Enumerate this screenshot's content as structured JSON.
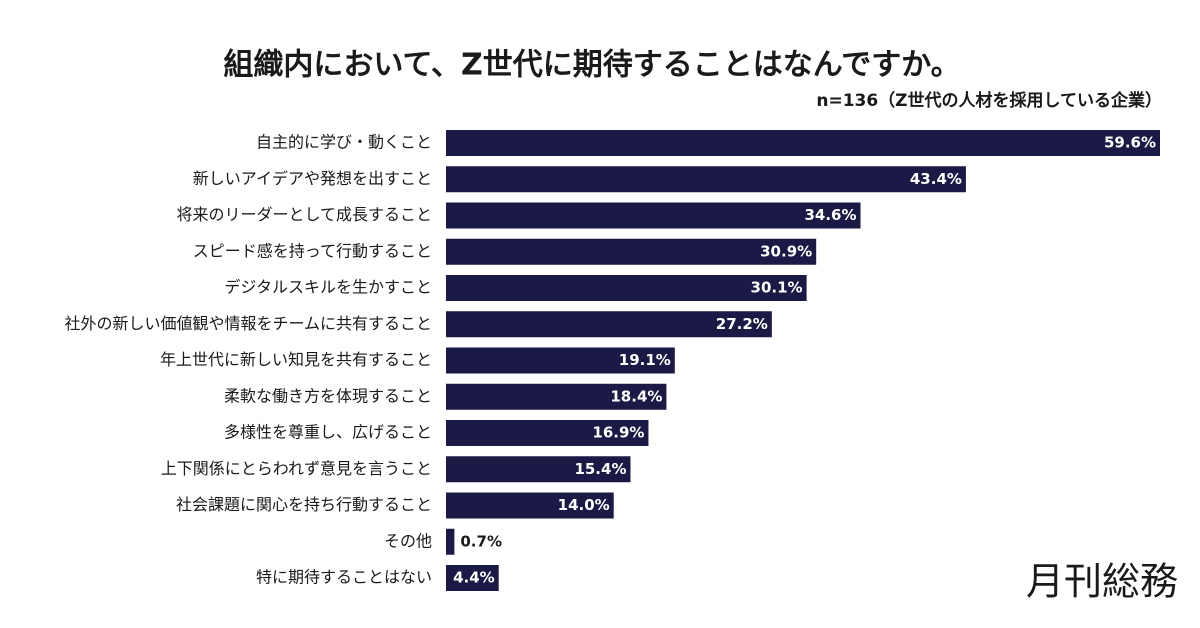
{
  "chart_data": {
    "type": "bar",
    "orientation": "horizontal",
    "title": "組織内において、Z世代に期待することはなんですか。",
    "subtitle": "n=136（Z世代の人材を採用している企業）",
    "categories": [
      "自主的に学び・動くこと",
      "新しいアイデアや発想を出すこと",
      "将来のリーダーとして成長すること",
      "スピード感を持って行動すること",
      "デジタルスキルを生かすこと",
      "社外の新しい価値観や情報をチームに共有すること",
      "年上世代に新しい知見を共有すること",
      "柔軟な働き方を体現すること",
      "多様性を尊重し、広げること",
      "上下関係にとらわれず意見を言うこと",
      "社会課題に関心を持ち行動すること",
      "その他",
      "特に期待することはない"
    ],
    "values": [
      59.6,
      43.4,
      34.6,
      30.9,
      30.1,
      27.2,
      19.1,
      18.4,
      16.9,
      15.4,
      14.0,
      0.7,
      4.4
    ],
    "value_labels": [
      "59.6%",
      "43.4%",
      "34.6%",
      "30.9%",
      "30.1%",
      "27.2%",
      "19.1%",
      "18.4%",
      "16.9%",
      "15.4%",
      "14.0%",
      "0.7%",
      "4.4%"
    ],
    "color": "#1b1a47"
  },
  "brand": "月刊総務"
}
